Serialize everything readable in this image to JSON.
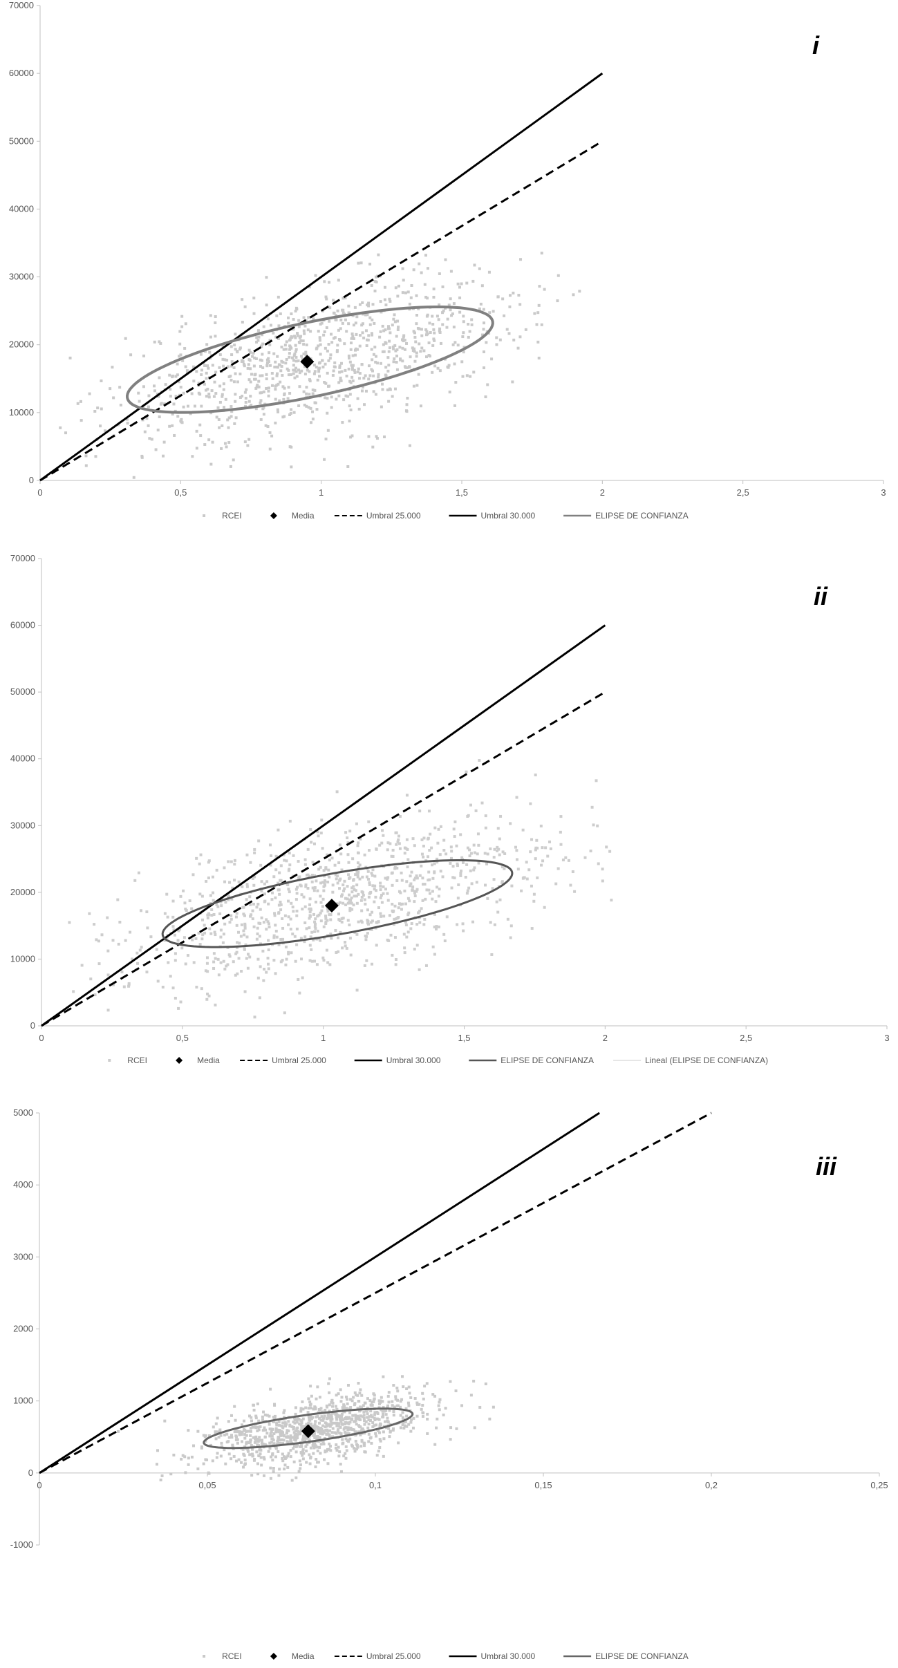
{
  "chart_data": [
    {
      "type": "scatter",
      "panel_label": "i",
      "xlim": [
        0,
        3
      ],
      "ylim": [
        0,
        70000
      ],
      "x_ticks": [
        "0",
        "0,5",
        "1",
        "1,5",
        "2",
        "2,5",
        "3"
      ],
      "y_ticks": [
        "0",
        "10000",
        "20000",
        "30000",
        "40000",
        "50000",
        "60000",
        "70000"
      ],
      "grid": false,
      "legend_position": "bottom",
      "legend": [
        "RCEI",
        "Media",
        "Umbral 25.000",
        "Umbral 30.000",
        "ELIPSE DE CONFIANZA"
      ],
      "mean": {
        "x": 0.95,
        "y": 17500
      },
      "cloud": {
        "cx": 1.0,
        "cy": 18000,
        "sx": 0.36,
        "sy": 6000,
        "rho": 0.55,
        "n": 1000
      },
      "thresholds": [
        {
          "label": "Umbral 30.000",
          "style": "solid",
          "x0": 0,
          "y0": 0,
          "x1": 2,
          "y1": 60000
        },
        {
          "label": "Umbral 25.000",
          "style": "dashed",
          "x0": 0,
          "y0": 0,
          "x1": 2,
          "y1": 50000
        }
      ],
      "ellipse": {
        "cx": 0.96,
        "cy": 17800,
        "half_axis_a": [
          0.65,
          5600
        ],
        "half_axis_b": [
          -0.02,
          5400
        ]
      },
      "colors": {
        "points": "#c9c9c9",
        "mean": "#000000",
        "ellipse": "#808080",
        "threshold": "#000000"
      }
    },
    {
      "type": "scatter",
      "panel_label": "ii",
      "xlim": [
        0,
        3
      ],
      "ylim": [
        0,
        70000
      ],
      "x_ticks": [
        "0",
        "0,5",
        "1",
        "1,5",
        "2",
        "2,5",
        "3"
      ],
      "y_ticks": [
        "0",
        "10000",
        "20000",
        "30000",
        "40000",
        "50000",
        "60000",
        "70000"
      ],
      "grid": false,
      "legend_position": "bottom",
      "legend": [
        "RCEI",
        "Media",
        "Umbral 25.000",
        "Umbral 30.000",
        "ELIPSE DE CONFIANZA",
        "Lineal (ELIPSE DE CONFIANZA)"
      ],
      "mean": {
        "x": 1.03,
        "y": 18000
      },
      "cloud": {
        "cx": 1.05,
        "cy": 18500,
        "sx": 0.38,
        "sy": 6200,
        "rho": 0.55,
        "n": 1000
      },
      "thresholds": [
        {
          "label": "Umbral 30.000",
          "style": "solid",
          "x0": 0,
          "y0": 0,
          "x1": 2,
          "y1": 60000
        },
        {
          "label": "Umbral 25.000",
          "style": "dashed",
          "x0": 0,
          "y0": 0,
          "x1": 2,
          "y1": 50000
        }
      ],
      "ellipse": {
        "cx": 1.05,
        "cy": 18300,
        "half_axis_a": [
          0.62,
          4700
        ],
        "half_axis_b": [
          -0.02,
          4500
        ]
      },
      "colors": {
        "points": "#cdcdcd",
        "mean": "#000000",
        "ellipse": "#555555",
        "threshold": "#000000"
      }
    },
    {
      "type": "scatter",
      "panel_label": "iii",
      "xlim": [
        0,
        0.25
      ],
      "ylim": [
        -1000,
        5000
      ],
      "x_ticks": [
        "0",
        "0,05",
        "0,1",
        "0,15",
        "0,2",
        "0,25"
      ],
      "y_ticks": [
        "-1000",
        "0",
        "1000",
        "2000",
        "3000",
        "4000",
        "5000"
      ],
      "grid": false,
      "legend_position": "bottom",
      "legend": [
        "RCEI",
        "Media",
        "Umbral 25.000",
        "Umbral 30.000",
        "ELIPSE DE CONFIANZA"
      ],
      "mean": {
        "x": 0.08,
        "y": 580
      },
      "cloud": {
        "cx": 0.082,
        "cy": 600,
        "sx": 0.018,
        "sy": 260,
        "rho": 0.5,
        "n": 1000
      },
      "thresholds": [
        {
          "label": "Umbral 30.000",
          "style": "solid",
          "x0": 0,
          "y0": 0,
          "x1": 0.1667,
          "y1": 5000
        },
        {
          "label": "Umbral 25.000",
          "style": "dashed",
          "x0": 0,
          "y0": 0,
          "x1": 0.2,
          "y1": 5000
        }
      ],
      "ellipse": {
        "cx": 0.08,
        "cy": 620,
        "half_axis_a": [
          0.031,
          210
        ],
        "half_axis_b": [
          -0.002,
          175
        ]
      },
      "colors": {
        "points": "#c9c9c9",
        "mean": "#000000",
        "ellipse": "#666666",
        "threshold": "#000000"
      }
    }
  ]
}
